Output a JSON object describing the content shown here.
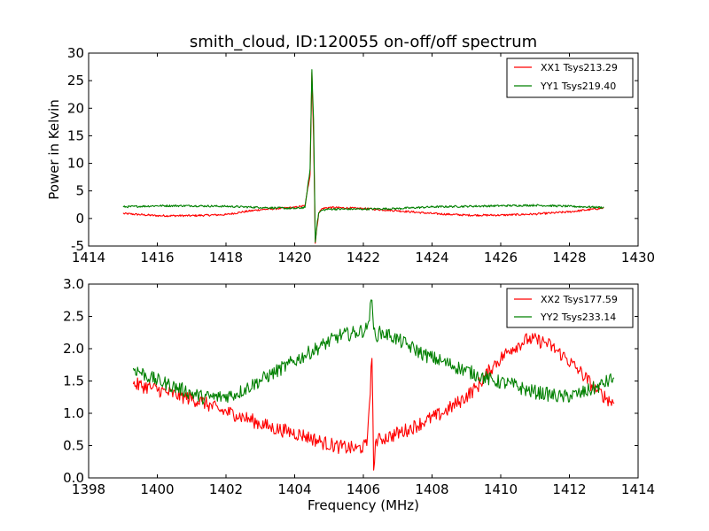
{
  "chart_data": [
    {
      "type": "line",
      "title": "smith_cloud, ID:120055 on-off/off spectrum",
      "xlabel": "",
      "ylabel": "Power in Kelvin",
      "xlim": [
        1414,
        1430
      ],
      "ylim": [
        -5,
        30
      ],
      "xticks": [
        1414,
        1416,
        1418,
        1420,
        1422,
        1424,
        1426,
        1428,
        1430
      ],
      "yticks": [
        -5,
        0,
        5,
        10,
        15,
        20,
        25,
        30
      ],
      "grid": false,
      "legend": "top-right",
      "series": [
        {
          "name": "XX1 Tsys213.29",
          "color": "#ff0000",
          "x": [
            1415.0,
            1416.0,
            1417.0,
            1418.0,
            1418.5,
            1419.0,
            1419.5,
            1420.0,
            1420.3,
            1420.45,
            1420.5,
            1420.55,
            1420.6,
            1420.65,
            1420.7,
            1420.8,
            1421.0,
            1422.0,
            1423.0,
            1424.0,
            1425.0,
            1426.0,
            1427.0,
            1428.0,
            1429.0
          ],
          "y": [
            0.9,
            0.5,
            0.5,
            0.7,
            1.2,
            1.6,
            1.8,
            2.0,
            2.3,
            8.0,
            26.5,
            15.0,
            -4.5,
            -1.5,
            1.0,
            1.8,
            2.0,
            1.8,
            1.4,
            0.9,
            0.6,
            0.6,
            0.8,
            1.2,
            1.9
          ]
        },
        {
          "name": "YY1 Tsys219.40",
          "color": "#008000",
          "x": [
            1415.0,
            1416.0,
            1417.0,
            1418.0,
            1418.5,
            1419.0,
            1419.5,
            1420.0,
            1420.3,
            1420.45,
            1420.5,
            1420.55,
            1420.6,
            1420.65,
            1420.7,
            1420.8,
            1421.0,
            1422.0,
            1423.0,
            1424.0,
            1425.0,
            1426.0,
            1427.0,
            1428.0,
            1429.0
          ],
          "y": [
            2.1,
            2.3,
            2.3,
            2.2,
            2.1,
            2.0,
            1.9,
            1.8,
            2.0,
            9.0,
            27.0,
            18.0,
            -4.3,
            -1.0,
            1.0,
            1.5,
            1.7,
            1.7,
            1.8,
            2.1,
            2.2,
            2.3,
            2.4,
            2.2,
            2.0
          ]
        }
      ]
    },
    {
      "type": "line",
      "title": "",
      "xlabel": "Frequency (MHz)",
      "ylabel": "",
      "xlim": [
        1398,
        1414
      ],
      "ylim": [
        0.0,
        3.0
      ],
      "xticks": [
        1398,
        1400,
        1402,
        1404,
        1406,
        1408,
        1410,
        1412,
        1414
      ],
      "yticks": [
        0.0,
        0.5,
        1.0,
        1.5,
        2.0,
        2.5,
        3.0
      ],
      "ytick_labels": [
        "0.0",
        "0.5",
        "1.0",
        "1.5",
        "2.0",
        "2.5",
        "3.0"
      ],
      "grid": false,
      "legend": "top-right",
      "series": [
        {
          "name": "XX2 Tsys177.59",
          "color": "#ff0000",
          "x": [
            1399.3,
            1399.8,
            1400.3,
            1400.8,
            1401.3,
            1401.8,
            1402.3,
            1402.8,
            1403.3,
            1403.8,
            1404.3,
            1404.8,
            1405.3,
            1405.8,
            1406.1,
            1406.25,
            1406.3,
            1406.35,
            1406.5,
            1406.8,
            1407.3,
            1407.8,
            1408.3,
            1408.8,
            1409.3,
            1409.8,
            1410.3,
            1410.8,
            1411.3,
            1411.8,
            1412.3,
            1412.8,
            1413.3
          ],
          "y": [
            1.45,
            1.4,
            1.32,
            1.25,
            1.18,
            1.05,
            0.98,
            0.88,
            0.78,
            0.72,
            0.65,
            0.55,
            0.48,
            0.45,
            0.5,
            1.85,
            0.12,
            0.55,
            0.6,
            0.65,
            0.75,
            0.88,
            1.0,
            1.18,
            1.4,
            1.75,
            2.0,
            2.15,
            2.1,
            1.9,
            1.65,
            1.35,
            1.15
          ]
        },
        {
          "name": "YY2 Tsys233.14",
          "color": "#008000",
          "x": [
            1399.3,
            1399.8,
            1400.3,
            1400.8,
            1401.3,
            1401.8,
            1402.3,
            1402.8,
            1403.3,
            1403.8,
            1404.3,
            1404.8,
            1405.3,
            1405.8,
            1406.1,
            1406.25,
            1406.3,
            1406.35,
            1406.5,
            1406.8,
            1407.3,
            1407.8,
            1408.3,
            1408.8,
            1409.3,
            1409.8,
            1410.3,
            1410.8,
            1411.3,
            1411.8,
            1412.3,
            1412.8,
            1413.3
          ],
          "y": [
            1.7,
            1.55,
            1.45,
            1.35,
            1.25,
            1.25,
            1.3,
            1.45,
            1.6,
            1.75,
            1.9,
            2.05,
            2.2,
            2.25,
            2.3,
            2.75,
            2.3,
            2.2,
            2.25,
            2.2,
            2.05,
            1.9,
            1.8,
            1.7,
            1.6,
            1.5,
            1.45,
            1.35,
            1.3,
            1.25,
            1.3,
            1.4,
            1.55
          ]
        }
      ]
    }
  ]
}
